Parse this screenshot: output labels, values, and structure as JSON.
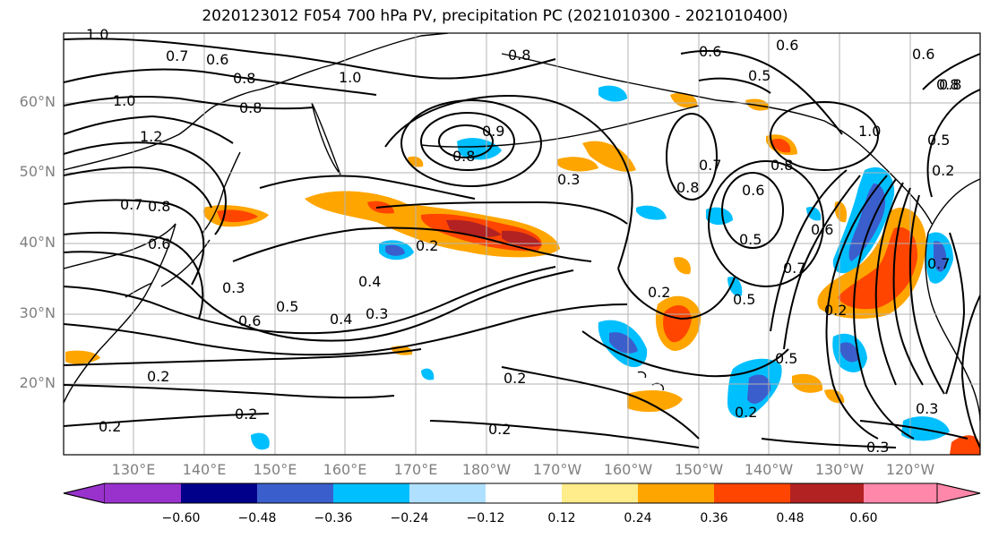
{
  "title": "2020123012 F054 700 hPa PV, precipitation PC (2021010300 - 2021010400)",
  "map": {
    "lat_labels": [
      "60°N",
      "50°N",
      "40°N",
      "30°N",
      "20°N"
    ],
    "lon_labels": [
      "130°E",
      "140°E",
      "150°E",
      "160°E",
      "170°E",
      "180°W",
      "170°W",
      "160°W",
      "150°W",
      "140°W",
      "130°W",
      "120°W"
    ],
    "contour_labels": [
      "1.0",
      "0.7",
      "0.6",
      "0.8",
      "1.0",
      "0.8",
      "0.6",
      "0.5",
      "0.6",
      "1.0",
      "1.2",
      "0.8",
      "0.8",
      "0.8",
      "0.9",
      "0.3",
      "0.7",
      "0.8",
      "0.6",
      "1.0",
      "0.8",
      "0.5",
      "0.7",
      "0.8",
      "0.6",
      "0.2",
      "0.5",
      "0.6",
      "0.7",
      "0.3",
      "0.4",
      "0.6",
      "0.5",
      "0.4",
      "0.3",
      "0.2",
      "0.5",
      "0.2",
      "0.7",
      "0.2",
      "0.5",
      "0.2",
      "0.2",
      "0.2",
      "0.2",
      "0.2",
      "0.3",
      "0.3",
      "0.2",
      "0.6",
      "0.8"
    ]
  },
  "colorbar": {
    "colors": [
      "#9932cc",
      "#00008b",
      "#3a5fcd",
      "#00bfff",
      "#b0e0ff",
      "#ffffff",
      "#ffec8b",
      "#ffa500",
      "#ff4500",
      "#b22222",
      "#ff88aa"
    ],
    "tick_labels": [
      "−0.60",
      "−0.48",
      "−0.36",
      "−0.24",
      "−0.12",
      "0.12",
      "0.24",
      "0.36",
      "0.48",
      "0.60"
    ]
  }
}
